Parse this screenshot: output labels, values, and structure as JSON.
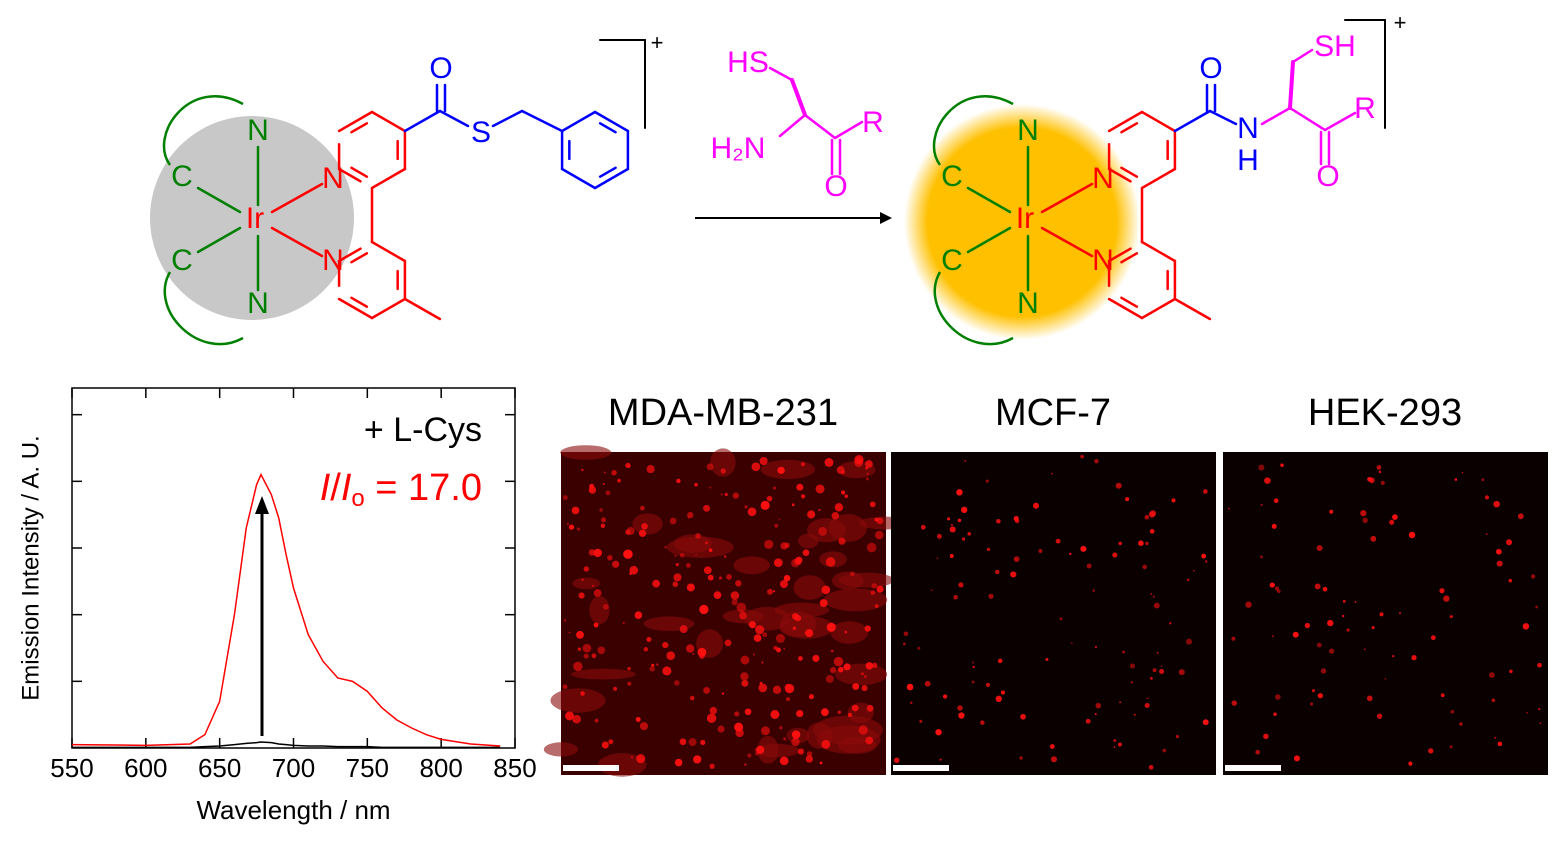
{
  "scheme": {
    "reactant_labels": [
      "N",
      "C",
      "Ir",
      "C",
      "N",
      "N",
      "N",
      "O",
      "S",
      "+"
    ],
    "reagent_labels": [
      "HS",
      "H₂N",
      "R",
      "O"
    ],
    "product_labels": [
      "N",
      "C",
      "Ir",
      "C",
      "N",
      "N",
      "N",
      "O",
      "N",
      "H",
      "SH",
      "R",
      "O",
      "+"
    ]
  },
  "chart_data": {
    "type": "line",
    "x_label": "Wavelength / nm",
    "y_label": "Emission Intensity / A. U.",
    "annotation": "+ L-Cys",
    "ratio": {
      "i1": "I",
      "slash": "/",
      "i2": "I",
      "sub": "o",
      "rest": " = 17.0"
    },
    "x": [
      550,
      600,
      630,
      640,
      650,
      660,
      668,
      675,
      678,
      685,
      690,
      695,
      700,
      710,
      720,
      730,
      740,
      750,
      760,
      770,
      780,
      790,
      800,
      820,
      840
    ],
    "series": [
      {
        "color": "#ff0000",
        "values": [
          0.05,
          0.04,
          0.06,
          0.2,
          0.7,
          2.0,
          3.3,
          3.95,
          4.1,
          3.8,
          3.45,
          2.9,
          2.4,
          1.7,
          1.3,
          1.05,
          1.0,
          0.85,
          0.6,
          0.42,
          0.3,
          0.2,
          0.13,
          0.06,
          0.03
        ]
      },
      {
        "color": "#000000",
        "values": [
          0.01,
          0.01,
          0.01,
          0.02,
          0.03,
          0.05,
          0.07,
          0.08,
          0.09,
          0.08,
          0.06,
          0.05,
          0.04,
          0.03,
          0.03,
          0.02,
          0.02,
          0.02,
          0.01,
          0.01,
          0.01,
          0.01,
          0.01,
          0.01,
          0.01
        ]
      }
    ],
    "xlim": [
      550,
      850
    ],
    "xticks": [
      550,
      600,
      650,
      700,
      750,
      800,
      850
    ],
    "ylim": [
      0,
      5.4
    ],
    "yticks": [
      1,
      2,
      3,
      4,
      5
    ]
  },
  "images": {
    "titles": [
      "MDA-MB-231",
      "MCF-7",
      "HEK-293"
    ]
  }
}
